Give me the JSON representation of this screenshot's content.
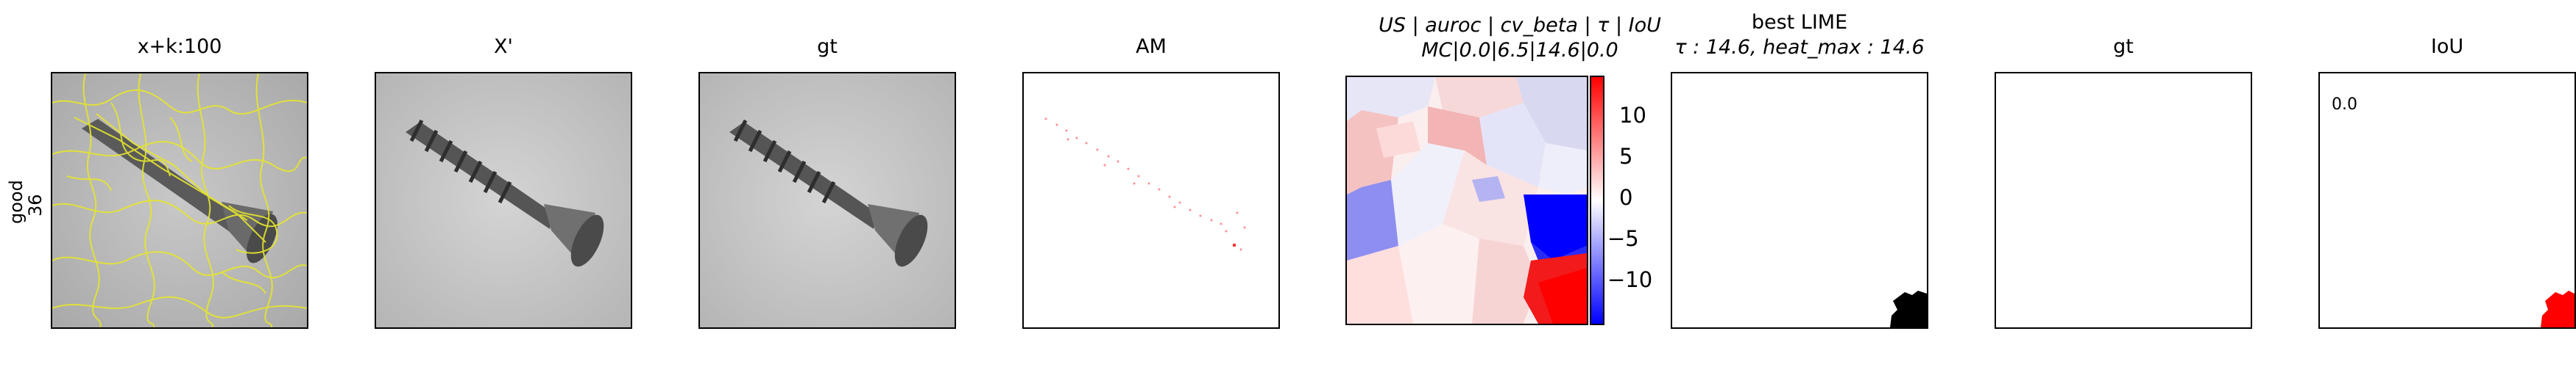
{
  "row_label": {
    "line1": "good",
    "line2": "36"
  },
  "panels": [
    {
      "title": "x+k:100"
    },
    {
      "title": "X'"
    },
    {
      "title": "gt"
    },
    {
      "title": "AM"
    },
    {
      "title_line1": "US | auroc | cv_beta | τ | IoU",
      "title_line2": "MC|0.0|6.5|14.6|0.0"
    },
    {
      "title_line1": "best LIME",
      "title_line2": "τ : 14.6, heat_max : 14.6"
    },
    {
      "title": "gt"
    },
    {
      "title": "IoU",
      "value": "0.0"
    }
  ],
  "colorbar": {
    "ticks": [
      "10",
      "5",
      "0",
      "−5",
      "−10"
    ],
    "colors": {
      "high": "#ff0000",
      "mid": "#ffffff",
      "low": "#0000ff"
    }
  },
  "colors": {
    "segment_lines": "#e6e62e",
    "am_dots": "#ff3333",
    "iou_blob": "#ff0000",
    "lime_blob": "#000000"
  }
}
